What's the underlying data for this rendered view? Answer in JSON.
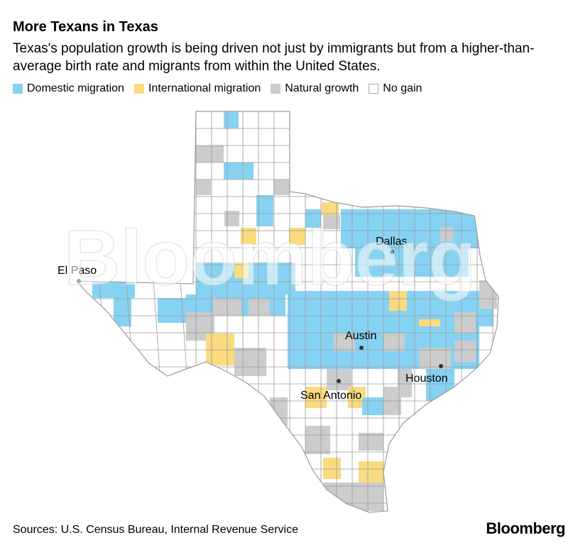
{
  "title": "More Texans in Texas",
  "subtitle": "Texas's population growth is being driven not just by immigrants but from a higher-than-average birth rate and migrants from within the United States.",
  "legend": [
    {
      "label": "Domestic migration",
      "color": "#86d2f2"
    },
    {
      "label": "International migration",
      "color": "#fadb7f"
    },
    {
      "label": "Natural growth",
      "color": "#cccccc"
    },
    {
      "label": "No gain",
      "color": "#ffffff"
    }
  ],
  "cities": [
    "El Paso",
    "Dallas",
    "Austin",
    "San Antonio",
    "Houston"
  ],
  "watermark": "Bloomberg",
  "source": "Sources: U.S. Census Bureau, Internal Revenue Service",
  "brand": "Bloomberg",
  "colors": {
    "domestic": "#86d2f2",
    "international": "#fadb7f",
    "natural": "#cccccc",
    "none": "#ffffff",
    "border": "#9a9a9a"
  }
}
